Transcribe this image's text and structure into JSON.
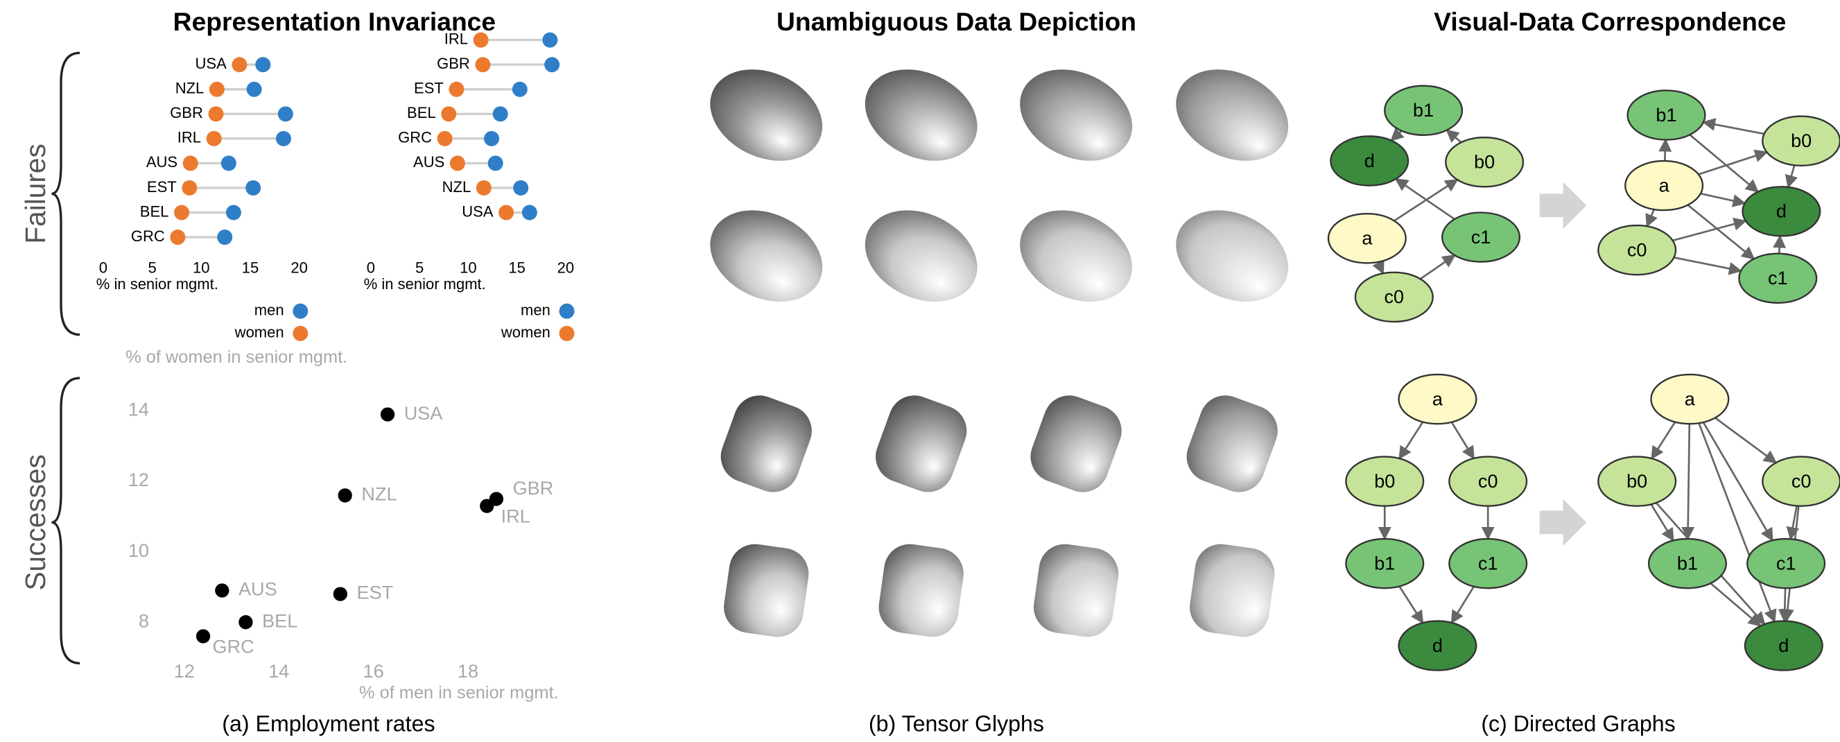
{
  "titles": [
    "Representation Invariance",
    "Unambiguous Data Depiction",
    "Visual-Data Correspondence"
  ],
  "row_labels": [
    "Failures",
    "Successes"
  ],
  "captions": [
    "(a) Employment rates",
    "(b) Tensor Glyphs",
    "(c) Directed Graphs"
  ],
  "chart_data": [
    {
      "type": "dot",
      "categories": [
        "USA",
        "NZL",
        "GBR",
        "IRL",
        "AUS",
        "EST",
        "BEL",
        "GRC"
      ],
      "series": [
        {
          "name": "men",
          "color": "#2f7fc8",
          "values": [
            16.3,
            15.4,
            18.6,
            18.4,
            12.8,
            15.3,
            13.3,
            12.4
          ]
        },
        {
          "name": "women",
          "color": "#ec7a2e",
          "values": [
            13.9,
            11.6,
            11.5,
            11.3,
            8.9,
            8.8,
            8.0,
            7.6
          ]
        }
      ],
      "xlim": [
        0,
        20
      ],
      "xticks": [
        0,
        5,
        10,
        15,
        20
      ],
      "xlabel": "% in senior mgmt."
    },
    {
      "type": "dot",
      "categories": [
        "IRL",
        "GBR",
        "EST",
        "BEL",
        "GRC",
        "AUS",
        "NZL",
        "USA"
      ],
      "series": [
        {
          "name": "men",
          "color": "#2f7fc8",
          "values": [
            18.4,
            18.6,
            15.3,
            13.3,
            12.4,
            12.8,
            15.4,
            16.3
          ]
        },
        {
          "name": "women",
          "color": "#ec7a2e",
          "values": [
            11.3,
            11.5,
            8.8,
            8.0,
            7.6,
            8.9,
            11.6,
            13.9
          ]
        }
      ],
      "xlim": [
        0,
        20
      ],
      "xticks": [
        0,
        5,
        10,
        15,
        20
      ],
      "xlabel": "% in senior mgmt."
    },
    {
      "type": "scatter",
      "labels": [
        "USA",
        "NZL",
        "GBR",
        "IRL",
        "AUS",
        "EST",
        "BEL",
        "GRC"
      ],
      "x": [
        16.3,
        15.4,
        18.6,
        18.4,
        12.8,
        15.3,
        13.3,
        12.4
      ],
      "y": [
        13.9,
        11.6,
        11.5,
        11.3,
        8.9,
        8.8,
        8.0,
        7.6
      ],
      "color": "#000000",
      "xlim": [
        10.8,
        19.6
      ],
      "ylim": [
        7.2,
        14.7
      ],
      "xticks": [
        12,
        14,
        16,
        18
      ],
      "yticks": [
        8,
        10,
        12,
        14
      ],
      "xlabel": "% of men in senior mgmt.",
      "ylabel": "% of women in senior mgmt."
    }
  ],
  "graphs": [
    {
      "nodes": [
        {
          "label": "a",
          "color": "#fff9c8"
        },
        {
          "label": "b0",
          "color": "#c5e49a"
        },
        {
          "label": "b1",
          "color": "#77c477"
        },
        {
          "label": "c0",
          "color": "#c5e49a"
        },
        {
          "label": "c1",
          "color": "#77c477"
        },
        {
          "label": "d",
          "color": "#3b8a3e"
        }
      ]
    },
    {
      "nodes": [
        {
          "label": "a",
          "color": "#fff9c8"
        },
        {
          "label": "b0",
          "color": "#c5e49a"
        },
        {
          "label": "b1",
          "color": "#77c477"
        },
        {
          "label": "c0",
          "color": "#c5e49a"
        },
        {
          "label": "c1",
          "color": "#77c477"
        },
        {
          "label": "d",
          "color": "#3b8a3e"
        }
      ]
    },
    {
      "nodes": [
        {
          "label": "a",
          "color": "#fff9c8"
        },
        {
          "label": "b0",
          "color": "#c5e49a"
        },
        {
          "label": "b1",
          "color": "#77c477"
        },
        {
          "label": "c0",
          "color": "#c5e49a"
        },
        {
          "label": "c1",
          "color": "#77c477"
        },
        {
          "label": "d",
          "color": "#3b8a3e"
        }
      ]
    },
    {
      "nodes": [
        {
          "label": "a",
          "color": "#fff9c8"
        },
        {
          "label": "b0",
          "color": "#c5e49a"
        },
        {
          "label": "b1",
          "color": "#77c477"
        },
        {
          "label": "c0",
          "color": "#c5e49a"
        },
        {
          "label": "c1",
          "color": "#77c477"
        },
        {
          "label": "d",
          "color": "#3b8a3e"
        }
      ]
    }
  ]
}
